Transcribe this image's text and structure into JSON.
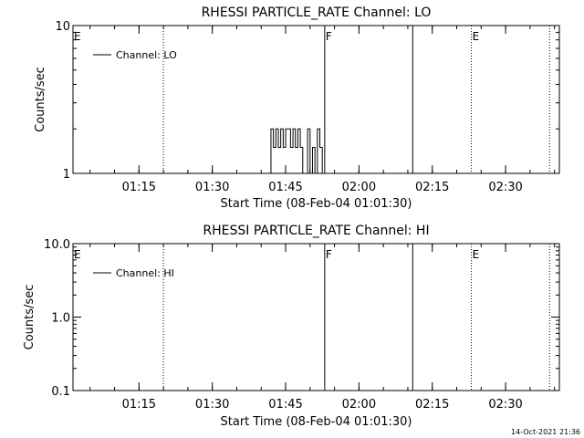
{
  "footer_timestamp": "14-Oct-2021 21:36",
  "colors": {
    "background": "#ffffff",
    "foreground": "#000000"
  },
  "chart_data": [
    {
      "type": "line",
      "title": "RHESSI PARTICLE_RATE Channel: LO",
      "xlabel": "Start Time (08-Feb-04 01:01:30)",
      "ylabel": "Counts/sec",
      "y_scale": "log",
      "ylim": [
        1,
        10
      ],
      "xlim": [
        "01:01:30",
        "02:41:00"
      ],
      "x_ticks": [
        "01:15",
        "01:30",
        "01:45",
        "02:00",
        "02:15",
        "02:30"
      ],
      "y_ticks": [
        "1",
        "10"
      ],
      "legend": {
        "position": "top-left",
        "entries": [
          "Channel: LO"
        ]
      },
      "markers": [
        {
          "time": "01:01:30",
          "label": "E",
          "style": "dotted"
        },
        {
          "time": "01:20:00",
          "label": "",
          "style": "dotted"
        },
        {
          "time": "01:53:00",
          "label": "F",
          "style": "solid"
        },
        {
          "time": "02:11:00",
          "label": "",
          "style": "solid"
        },
        {
          "time": "02:23:00",
          "label": "E",
          "style": "dotted"
        },
        {
          "time": "02:39:00",
          "label": "",
          "style": "dotted"
        }
      ],
      "series": [
        {
          "name": "Channel: LO",
          "x": [
            "01:41:30",
            "01:42:00",
            "01:42:30",
            "01:43:00",
            "01:43:30",
            "01:44:00",
            "01:44:30",
            "01:45:00",
            "01:45:30",
            "01:46:00",
            "01:46:30",
            "01:47:00",
            "01:47:30",
            "01:48:00",
            "01:48:30",
            "01:49:00",
            "01:49:30",
            "01:50:00",
            "01:50:30",
            "01:51:00",
            "01:51:30",
            "01:52:00",
            "01:52:30"
          ],
          "values": [
            1,
            2,
            1.5,
            2,
            1.5,
            2,
            1.5,
            2,
            2,
            1.5,
            2,
            1.5,
            2,
            1.5,
            1,
            1,
            2,
            1,
            1.5,
            1,
            2,
            1.5,
            1
          ]
        }
      ]
    },
    {
      "type": "line",
      "title": "RHESSI PARTICLE_RATE Channel: HI",
      "xlabel": "Start Time (08-Feb-04 01:01:30)",
      "ylabel": "Counts/sec",
      "y_scale": "log",
      "ylim": [
        0.1,
        10
      ],
      "xlim": [
        "01:01:30",
        "02:41:00"
      ],
      "x_ticks": [
        "01:15",
        "01:30",
        "01:45",
        "02:00",
        "02:15",
        "02:30"
      ],
      "y_ticks": [
        "0.1",
        "1.0",
        "10.0"
      ],
      "legend": {
        "position": "top-left",
        "entries": [
          "Channel: HI"
        ]
      },
      "markers": [
        {
          "time": "01:01:30",
          "label": "E",
          "style": "dotted"
        },
        {
          "time": "01:20:00",
          "label": "",
          "style": "dotted"
        },
        {
          "time": "01:53:00",
          "label": "F",
          "style": "solid"
        },
        {
          "time": "02:11:00",
          "label": "",
          "style": "solid"
        },
        {
          "time": "02:23:00",
          "label": "E",
          "style": "dotted"
        },
        {
          "time": "02:39:00",
          "label": "",
          "style": "dotted"
        }
      ],
      "series": [
        {
          "name": "Channel: HI",
          "x": [],
          "values": []
        }
      ]
    }
  ]
}
